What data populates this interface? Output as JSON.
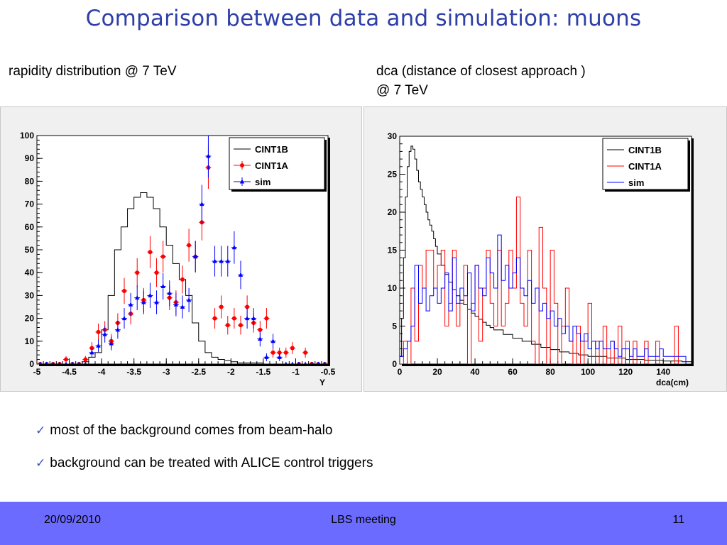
{
  "slide": {
    "title": "Comparison between data and simulation: muons",
    "subtitle_left": "rapidity distribution @ 7 TeV",
    "subtitle_right": "dca (distance of closest approach )\n@ 7 TeV",
    "bullets": [
      "most of the background comes from beam-halo",
      "background can be treated with ALICE control triggers"
    ],
    "footer": {
      "date": "20/09/2010",
      "center": "LBS meeting",
      "page": "11"
    }
  },
  "colors": {
    "title": "#2e3fa8",
    "footer_bg": "#6b6bff",
    "cint1b": "#000000",
    "cint1a": "#ff0000",
    "sim": "#0000ff",
    "check": "#3b4fc4"
  },
  "icons": [
    "check-icon"
  ],
  "chart_data": [
    {
      "type": "line",
      "xlabel": "Y",
      "ylabel": "",
      "xlim": [
        -5,
        -0.5
      ],
      "ylim": [
        0,
        100
      ],
      "xticks": [
        "-5",
        "-4.5",
        "-4",
        "-3.5",
        "-3",
        "-2.5",
        "-2",
        "-1.5",
        "-1",
        "-0.5"
      ],
      "yticks": [
        "0",
        "10",
        "20",
        "30",
        "40",
        "50",
        "60",
        "70",
        "80",
        "90",
        "100"
      ],
      "legend": {
        "position": "top-right",
        "entries": [
          "CINT1B",
          "CINT1A",
          "sim"
        ]
      },
      "series": [
        {
          "name": "CINT1B",
          "style": "histogram",
          "x": [
            -5.0,
            -4.9,
            -4.8,
            -4.7,
            -4.6,
            -4.5,
            -4.4,
            -4.3,
            -4.2,
            -4.1,
            -4.0,
            -3.9,
            -3.8,
            -3.7,
            -3.6,
            -3.5,
            -3.4,
            -3.3,
            -3.2,
            -3.1,
            -3.0,
            -2.9,
            -2.8,
            -2.7,
            -2.6,
            -2.5,
            -2.4,
            -2.3,
            -2.2,
            -2.1,
            -2.0,
            -1.9,
            -1.8,
            -1.7,
            -1.6,
            -1.5,
            -1.4,
            -1.3,
            -1.2,
            -1.1,
            -1.0,
            -0.9,
            -0.8,
            -0.7,
            -0.6
          ],
          "values": [
            0,
            0,
            0,
            0,
            0,
            0,
            0,
            1,
            3,
            5,
            15,
            30,
            50,
            60,
            68,
            73,
            75,
            73,
            68,
            60,
            52,
            44,
            37,
            30,
            18,
            10,
            5,
            3,
            2,
            1.5,
            1,
            0.5,
            0.5,
            0.5,
            0.5,
            0,
            0,
            0,
            0,
            0,
            0,
            0,
            0,
            0,
            0
          ]
        },
        {
          "name": "CINT1A",
          "style": "points-with-errors",
          "points": [
            [
              -4.95,
              0,
              0
            ],
            [
              -4.85,
              0,
              0
            ],
            [
              -4.75,
              0,
              0
            ],
            [
              -4.65,
              0,
              0
            ],
            [
              -4.55,
              2,
              1.5
            ],
            [
              -4.45,
              0,
              0
            ],
            [
              -4.35,
              0,
              0
            ],
            [
              -4.25,
              2,
              1.5
            ],
            [
              -4.15,
              7,
              2.6
            ],
            [
              -4.05,
              14,
              3.7
            ],
            [
              -3.95,
              15,
              3.8
            ],
            [
              -3.85,
              10,
              3.2
            ],
            [
              -3.75,
              18,
              4.2
            ],
            [
              -3.65,
              32,
              5.7
            ],
            [
              -3.55,
              22,
              4.7
            ],
            [
              -3.45,
              40,
              6.3
            ],
            [
              -3.35,
              28,
              5.3
            ],
            [
              -3.25,
              49,
              7
            ],
            [
              -3.15,
              40,
              6.3
            ],
            [
              -3.05,
              47,
              6.9
            ],
            [
              -2.95,
              29,
              5.4
            ],
            [
              -2.85,
              27,
              5.2
            ],
            [
              -2.75,
              37,
              6.1
            ],
            [
              -2.65,
              52,
              7.2
            ],
            [
              -2.55,
              47,
              6.9
            ],
            [
              -2.45,
              62,
              7.9
            ],
            [
              -2.35,
              86,
              9.3
            ],
            [
              -2.25,
              20,
              4.5
            ],
            [
              -2.15,
              25,
              5
            ],
            [
              -2.05,
              17,
              4.1
            ],
            [
              -1.95,
              20,
              4.5
            ],
            [
              -1.85,
              17,
              4.1
            ],
            [
              -1.75,
              25,
              5
            ],
            [
              -1.65,
              18,
              4.2
            ],
            [
              -1.55,
              15,
              3.9
            ],
            [
              -1.45,
              20,
              4.5
            ],
            [
              -1.35,
              5,
              2.2
            ],
            [
              -1.25,
              5,
              2.2
            ],
            [
              -1.15,
              5,
              2.2
            ],
            [
              -1.05,
              7,
              2.6
            ],
            [
              -0.95,
              0,
              0
            ],
            [
              -0.85,
              5,
              2.2
            ],
            [
              -0.75,
              0,
              0
            ],
            [
              -0.65,
              0,
              0
            ],
            [
              -0.55,
              0,
              0
            ]
          ]
        },
        {
          "name": "sim",
          "style": "points-with-errors",
          "points": [
            [
              -4.95,
              0,
              0
            ],
            [
              -4.85,
              0,
              0
            ],
            [
              -4.75,
              0,
              0
            ],
            [
              -4.65,
              0,
              0
            ],
            [
              -4.55,
              0,
              0
            ],
            [
              -4.45,
              0,
              0
            ],
            [
              -4.35,
              0,
              0
            ],
            [
              -4.25,
              0,
              0
            ],
            [
              -4.15,
              5,
              2.2
            ],
            [
              -4.05,
              8,
              2.8
            ],
            [
              -3.95,
              13,
              3.6
            ],
            [
              -3.85,
              9,
              3
            ],
            [
              -3.75,
              15,
              3.9
            ],
            [
              -3.65,
              20,
              4.5
            ],
            [
              -3.55,
              26,
              5.1
            ],
            [
              -3.45,
              29,
              5.4
            ],
            [
              -3.35,
              27,
              5.2
            ],
            [
              -3.25,
              30,
              5.5
            ],
            [
              -3.15,
              27,
              5.2
            ],
            [
              -3.05,
              34,
              5.8
            ],
            [
              -2.95,
              31,
              5.6
            ],
            [
              -2.85,
              26,
              5.1
            ],
            [
              -2.75,
              25,
              5
            ],
            [
              -2.65,
              28,
              5.3
            ],
            [
              -2.55,
              47,
              6.9
            ],
            [
              -2.45,
              70,
              8.4
            ],
            [
              -2.35,
              91,
              9.5
            ],
            [
              -2.25,
              45,
              6.7
            ],
            [
              -2.15,
              45,
              6.7
            ],
            [
              -2.05,
              45,
              6.7
            ],
            [
              -1.95,
              51,
              7.1
            ],
            [
              -1.85,
              39,
              6.2
            ],
            [
              -1.75,
              20,
              4.5
            ],
            [
              -1.65,
              20,
              4.5
            ],
            [
              -1.55,
              11,
              3.3
            ],
            [
              -1.45,
              3,
              1.7
            ],
            [
              -1.35,
              10,
              3.2
            ],
            [
              -1.25,
              3,
              1.7
            ],
            [
              -1.15,
              0,
              0
            ],
            [
              -1.05,
              0,
              0
            ],
            [
              -0.95,
              0,
              0
            ],
            [
              -0.85,
              0,
              0
            ],
            [
              -0.75,
              0,
              0
            ],
            [
              -0.65,
              0,
              0
            ],
            [
              -0.55,
              0,
              0
            ]
          ]
        }
      ]
    },
    {
      "type": "line",
      "xlabel": "dca(cm)",
      "ylabel": "",
      "xlim": [
        0,
        155
      ],
      "ylim": [
        0,
        30
      ],
      "xticks": [
        "0",
        "20",
        "40",
        "60",
        "80",
        "100",
        "120",
        "140"
      ],
      "yticks": [
        "0",
        "5",
        "10",
        "15",
        "20",
        "25",
        "30"
      ],
      "legend": {
        "position": "top-right",
        "entries": [
          "CINT1B",
          "CINT1A",
          "sim"
        ]
      },
      "series": [
        {
          "name": "CINT1B",
          "style": "histogram",
          "x": [
            0,
            1,
            2,
            3,
            4,
            5,
            6,
            7,
            8,
            9,
            10,
            11,
            12,
            13,
            14,
            15,
            16,
            17,
            18,
            19,
            20,
            22,
            24,
            26,
            28,
            30,
            32,
            34,
            36,
            38,
            40,
            42,
            44,
            46,
            48,
            50,
            55,
            60,
            65,
            70,
            75,
            80,
            85,
            90,
            95,
            100,
            110,
            120,
            130,
            140,
            150
          ],
          "values": [
            1,
            6,
            14,
            22,
            26,
            28,
            28.7,
            28.3,
            27,
            25.5,
            24,
            23,
            22,
            21,
            20,
            19,
            18.3,
            17.5,
            16.5,
            15.5,
            14.5,
            13,
            11.8,
            10.8,
            9.8,
            9,
            8.4,
            7.8,
            7.2,
            6.7,
            6.3,
            5.9,
            5.5,
            5.1,
            4.8,
            4.5,
            3.9,
            3.4,
            3,
            2.6,
            2.2,
            1.9,
            1.6,
            1.4,
            1.2,
            1,
            0.8,
            0.6,
            0.5,
            0.4,
            0.3
          ]
        },
        {
          "name": "CINT1A",
          "style": "histogram",
          "x": [
            0,
            2,
            4,
            6,
            8,
            10,
            12,
            14,
            16,
            18,
            20,
            22,
            24,
            26,
            28,
            30,
            32,
            34,
            36,
            38,
            40,
            42,
            44,
            46,
            48,
            50,
            52,
            54,
            56,
            58,
            60,
            62,
            64,
            66,
            68,
            70,
            72,
            74,
            76,
            78,
            80,
            82,
            84,
            86,
            88,
            90,
            92,
            94,
            96,
            98,
            100,
            102,
            104,
            106,
            108,
            110,
            112,
            114,
            116,
            118,
            120,
            122,
            124,
            126,
            128,
            130,
            132,
            134,
            136,
            138,
            140,
            142,
            144,
            146,
            148,
            150,
            152
          ],
          "values": [
            0,
            3,
            0,
            10,
            3,
            13,
            10,
            15,
            15,
            10,
            13,
            15,
            5,
            8,
            15,
            5,
            8,
            13,
            0,
            8,
            13,
            3,
            10,
            15,
            8,
            5,
            15,
            5,
            8,
            15,
            10,
            22,
            8,
            5,
            15,
            3,
            0,
            18,
            10,
            0,
            15,
            8,
            0,
            5,
            10,
            3,
            0,
            5,
            0,
            3,
            8,
            0,
            3,
            0,
            5,
            0,
            3,
            0,
            5,
            0,
            3,
            0,
            3,
            0,
            0,
            3,
            0,
            0,
            3,
            0,
            0,
            0,
            0,
            5,
            0,
            0,
            0
          ]
        },
        {
          "name": "sim",
          "style": "histogram",
          "x": [
            0,
            2,
            4,
            6,
            8,
            10,
            12,
            14,
            16,
            18,
            20,
            22,
            24,
            26,
            28,
            30,
            32,
            34,
            36,
            38,
            40,
            42,
            44,
            46,
            48,
            50,
            52,
            54,
            56,
            58,
            60,
            62,
            64,
            66,
            68,
            70,
            72,
            74,
            76,
            78,
            80,
            82,
            84,
            86,
            88,
            90,
            92,
            94,
            96,
            98,
            100,
            102,
            104,
            106,
            108,
            110,
            112,
            114,
            116,
            118,
            120,
            122,
            124,
            126,
            128,
            130,
            132,
            134,
            136,
            138,
            140,
            142,
            144,
            146,
            148,
            150,
            152
          ],
          "values": [
            1,
            2,
            3,
            5,
            13,
            8,
            10,
            7,
            9,
            10,
            8,
            10,
            12,
            7,
            14,
            8,
            10,
            9,
            12,
            7,
            13,
            10,
            9,
            14,
            12,
            10,
            17,
            11,
            13,
            10,
            12,
            14,
            10,
            9,
            11,
            8,
            10,
            7,
            8,
            6,
            7,
            5,
            6,
            4,
            5,
            3,
            5,
            4,
            3,
            4,
            2,
            3,
            2,
            3,
            2,
            2,
            3,
            2,
            1,
            2,
            2,
            1,
            2,
            1,
            1,
            2,
            1,
            1,
            1,
            2,
            1,
            1,
            1,
            1,
            1,
            1,
            0
          ]
        }
      ]
    }
  ]
}
